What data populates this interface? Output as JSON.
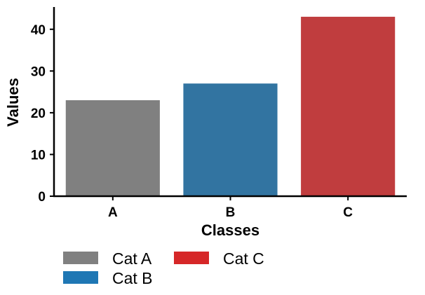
{
  "chart_data": {
    "type": "bar",
    "categories": [
      "A",
      "B",
      "C"
    ],
    "values": [
      23,
      27,
      43
    ],
    "bar_colors": [
      "#808080",
      "#3274a1",
      "#c03d3e"
    ],
    "xlabel": "Classes",
    "ylabel": "Values",
    "ylim": [
      0,
      45
    ],
    "yticks": [
      0,
      10,
      20,
      30,
      40
    ],
    "grid": false,
    "legend": {
      "placement": "bottom-left",
      "columns": 2,
      "entries": [
        {
          "label": "Cat A",
          "color": "#808080"
        },
        {
          "label": "Cat B",
          "color": "#1f77b4"
        },
        {
          "label": "Cat C",
          "color": "#d62728"
        }
      ]
    }
  }
}
